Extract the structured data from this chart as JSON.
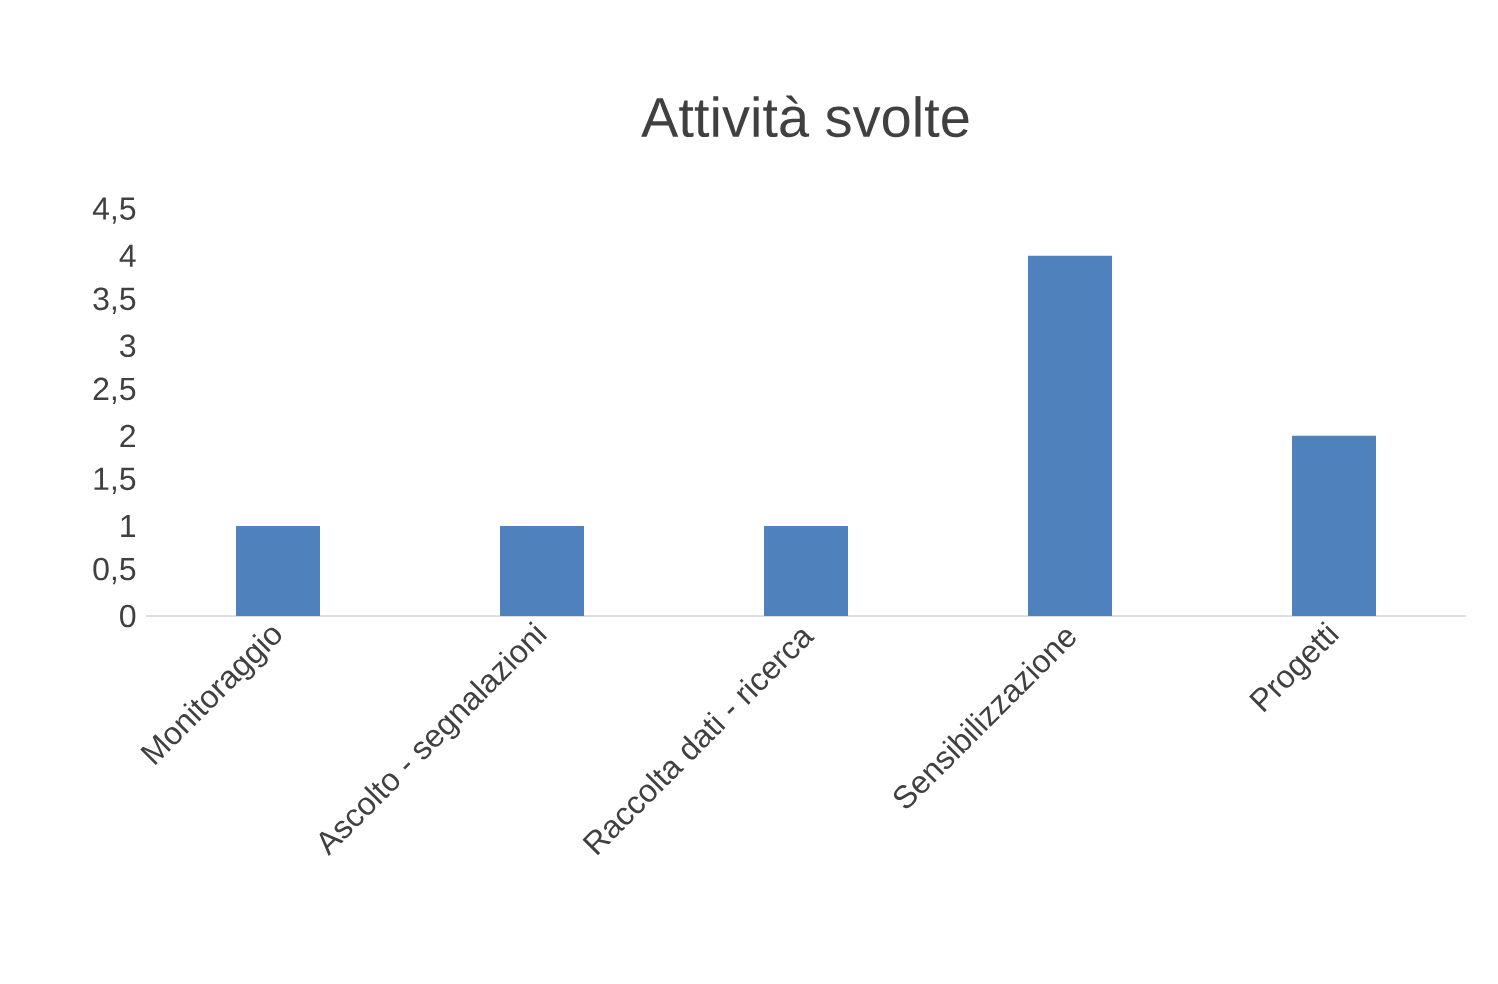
{
  "chart_data": {
    "type": "bar",
    "title": "Attività svolte",
    "categories": [
      "Monitoraggio",
      "Ascolto - segnalazioni",
      "Raccolta dati - ricerca",
      "Sensibilizzazione",
      "Progetti"
    ],
    "values": [
      1,
      1,
      1,
      4,
      2
    ],
    "color": "#4f81bd",
    "ylim": [
      0,
      4.5
    ],
    "yticks": [
      0,
      {
        "value": 0.5,
        "label": "0,5"
      },
      1,
      {
        "value": 1.5,
        "label": "1,5"
      },
      2,
      {
        "value": 2.5,
        "label": "2,5"
      },
      3,
      {
        "value": 3.5,
        "label": "3,5"
      },
      4,
      {
        "value": 4.5,
        "label": "4,5"
      }
    ]
  }
}
